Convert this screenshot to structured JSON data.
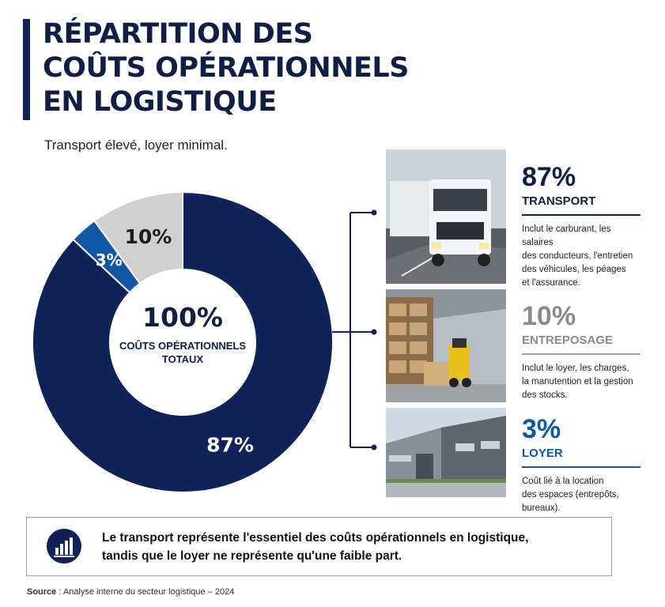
{
  "title_lines": [
    "RÉPARTITION DES",
    "COÛTS OPÉRATIONNELS",
    "EN LOGISTIQUE"
  ],
  "subtitle": "Transport élevé, loyer minimal.",
  "center": {
    "value": "100%",
    "label_line1": "COÛTS OPÉRATIONNELS",
    "label_line2": "TOTAUX"
  },
  "chart_data": {
    "type": "pie",
    "title": "RÉPARTITION DES COÛTS OPÉRATIONNELS EN LOGISTIQUE",
    "categories": [
      "TRANSPORT",
      "ENTREPOSAGE",
      "LOYER"
    ],
    "values": [
      87,
      10,
      3
    ],
    "unit": "%",
    "data_labels": [
      "87%",
      "10%",
      "3%"
    ],
    "colors": [
      "#0f2358",
      "#d0d0d0",
      "#1256a6"
    ],
    "label_colors": [
      "#ffffff",
      "#1b1b1b",
      "#ffffff"
    ],
    "donut": true
  },
  "categories": [
    {
      "pct": "87%",
      "name": "TRANSPORT",
      "color": "#0f2358",
      "name_color": "#0f1e45",
      "desc_lines": [
        "Inclut le carburant, les salaires",
        "des conducteurs, l'entretien",
        "des véhicules, les péages",
        "et l'assurance."
      ]
    },
    {
      "pct": "10%",
      "name": "ENTREPOSAGE",
      "color": "#8a8a8a",
      "name_color": "#8a8a8a",
      "desc_lines": [
        "Inclut le loyer, les charges,",
        "la manutention et la gestion",
        "des stocks."
      ]
    },
    {
      "pct": "3%",
      "name": "LOYER",
      "color": "#1256a6",
      "name_color": "#1256a6",
      "desc_lines": [
        "Coût lié à la location",
        "des espaces (entrepôts,",
        "bureaux)."
      ]
    }
  ],
  "callout": {
    "line1": "Le transport représente l'essentiel des coûts opérationnels en logistique,",
    "line2": "tandis que le loyer ne représente qu'une faible part.",
    "icon": "bar-chart-icon"
  },
  "source": {
    "label": "Source",
    "text": " : Analyse interne du secteur logistique – 2024"
  }
}
